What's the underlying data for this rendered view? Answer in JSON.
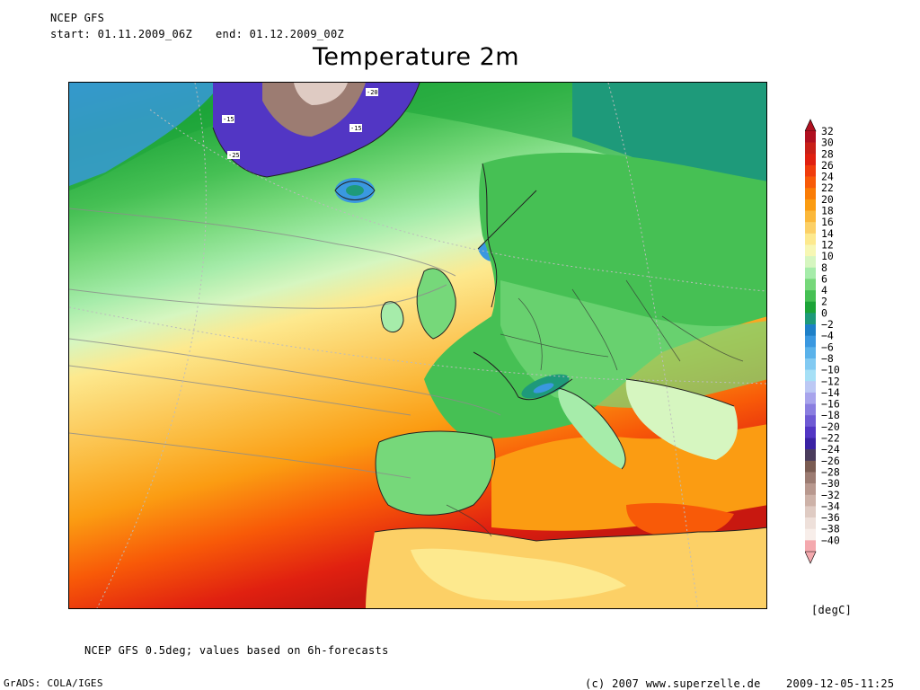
{
  "header": {
    "model": "NCEP GFS",
    "start": "start: 01.11.2009_06Z",
    "end": "end: 01.12.2009_00Z"
  },
  "title": "Temperature 2m",
  "colorbar": {
    "levels": [
      32,
      30,
      28,
      26,
      24,
      22,
      20,
      18,
      16,
      14,
      12,
      10,
      8,
      6,
      4,
      2,
      0,
      -2,
      -4,
      -6,
      -8,
      -10,
      -12,
      -14,
      -16,
      -18,
      -20,
      -22,
      -24,
      -26,
      -28,
      -30,
      -32,
      -34,
      -36,
      -38,
      -40
    ],
    "labels": [
      "32",
      "30",
      "28",
      "26",
      "24",
      "22",
      "20",
      "18",
      "16",
      "14",
      "12",
      "10",
      "8",
      "6",
      "4",
      "2",
      "0",
      "−2",
      "−4",
      "−6",
      "−8",
      "−10",
      "−12",
      "−14",
      "−16",
      "−18",
      "−20",
      "−22",
      "−24",
      "−26",
      "−28",
      "−30",
      "−32",
      "−34",
      "−36",
      "−38",
      "−40"
    ],
    "colors": [
      "#b01020",
      "#c82018",
      "#e02010",
      "#f03c0c",
      "#f85a08",
      "#fa7c06",
      "#fb9c12",
      "#fbb83a",
      "#fcd066",
      "#fde98e",
      "#f7f7b4",
      "#d6f6c0",
      "#a6ecaa",
      "#76d87a",
      "#46c054",
      "#1ca438",
      "#1e9a7a",
      "#1e80c8",
      "#3a98e0",
      "#5ab2ea",
      "#82caf2",
      "#a6e0f6",
      "#bcc8f4",
      "#a8a4ec",
      "#8a7ee0",
      "#6e5ad4",
      "#5236c4",
      "#3a22a4",
      "#4a3c5c",
      "#7a5c52",
      "#9c7c72",
      "#b8988e",
      "#cdb2a8",
      "#dfcbc3",
      "#eee0da",
      "#f8eeea",
      "#f4a9ae"
    ],
    "unit": "[degC]"
  },
  "map_labels": [
    "-15",
    "-25",
    "-20",
    "-15"
  ],
  "footnote": "NCEP GFS 0.5deg; values based on 6h-forecasts",
  "footer": {
    "grads": "GrADS: COLA/IGES",
    "copyright": "(c) 2007 www.superzelle.de",
    "timestamp": "2009-12-05-11:25"
  }
}
